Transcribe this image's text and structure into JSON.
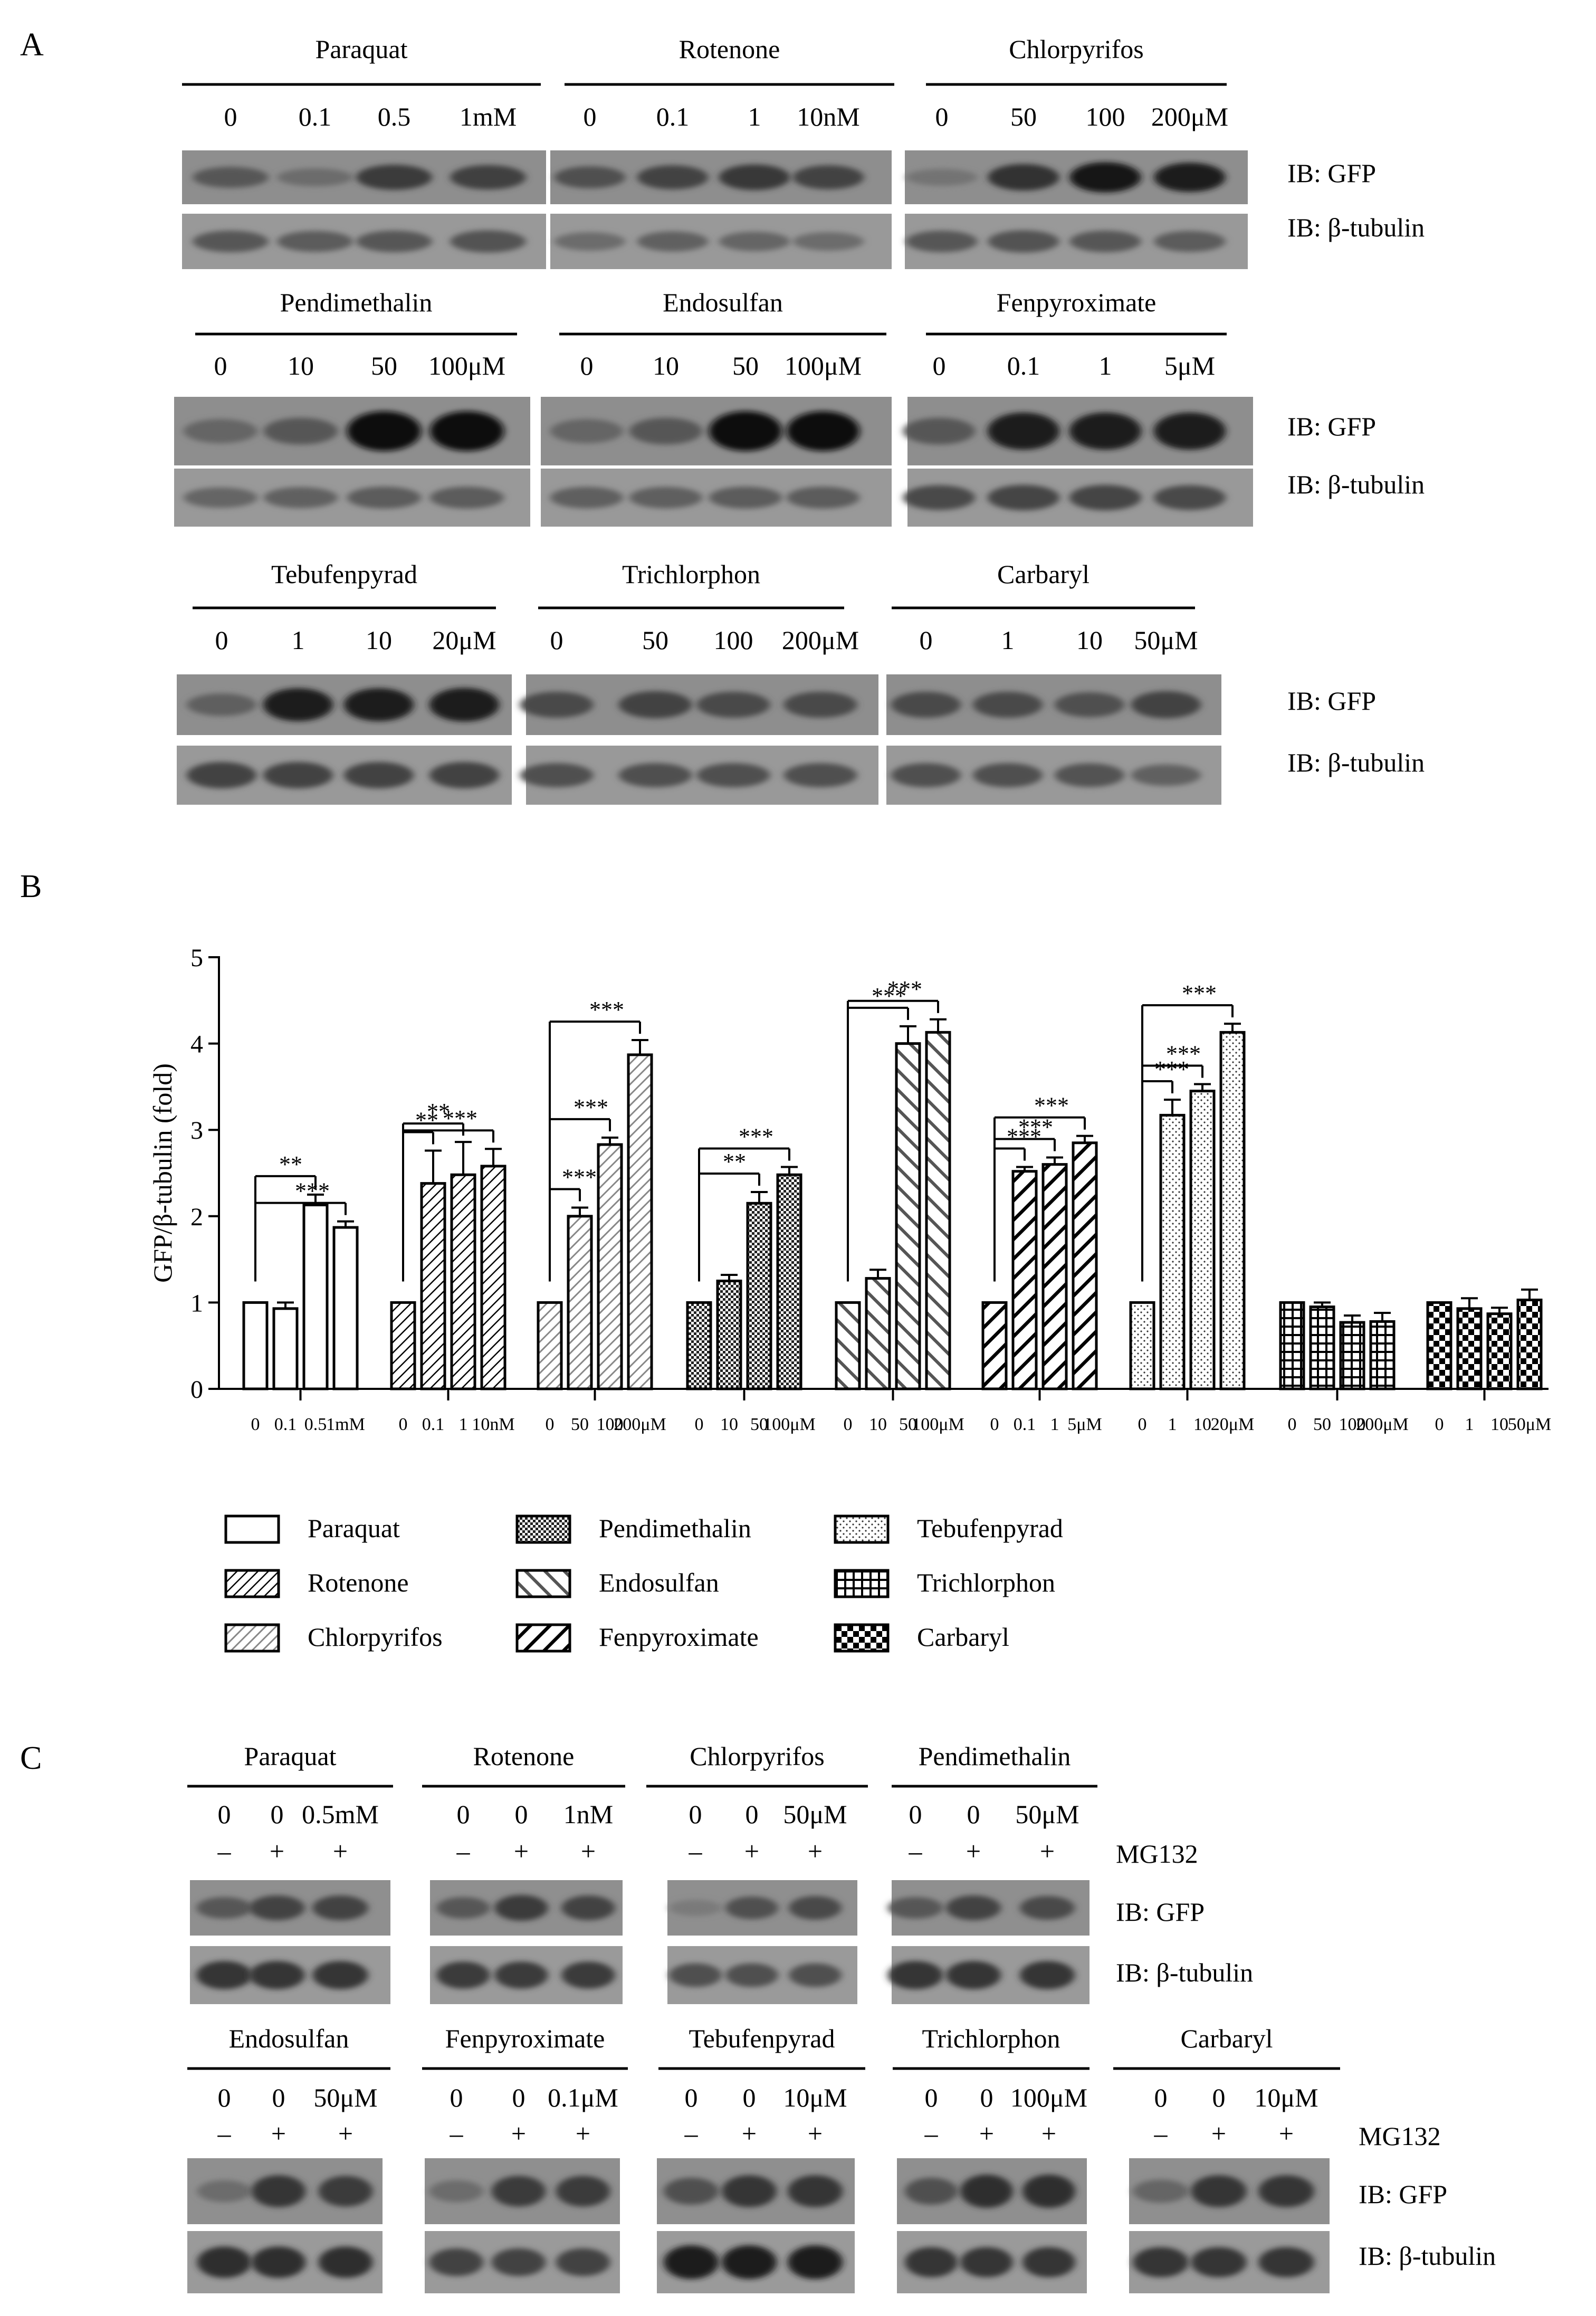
{
  "panel_labels": {
    "a": "A",
    "b": "B",
    "c": "C"
  },
  "panel_a": {
    "rows": [
      {
        "groups": [
          {
            "name": "Paraquat",
            "doses": [
              "0",
              "0.1",
              "0.5",
              "1mM"
            ],
            "gfp": [
              0.45,
              0.3,
              0.65,
              0.62
            ],
            "tub": [
              0.45,
              0.42,
              0.45,
              0.48
            ]
          },
          {
            "name": "Rotenone",
            "doses": [
              "0",
              "0.1",
              "1",
              "10nM"
            ],
            "gfp": [
              0.5,
              0.6,
              0.68,
              0.6
            ],
            "tub": [
              0.3,
              0.38,
              0.35,
              0.3
            ]
          },
          {
            "name": "Chlorpyrifos",
            "doses": [
              "0",
              "50",
              "100",
              "200μM"
            ],
            "gfp": [
              0.25,
              0.72,
              0.9,
              0.85
            ],
            "tub": [
              0.45,
              0.48,
              0.45,
              0.42
            ]
          }
        ]
      },
      {
        "groups": [
          {
            "name": "Pendimethalin",
            "doses": [
              "0",
              "10",
              "50",
              "100μM"
            ],
            "gfp": [
              0.35,
              0.45,
              0.95,
              0.95
            ],
            "tub": [
              0.35,
              0.38,
              0.42,
              0.42
            ]
          },
          {
            "name": "Endosulfan",
            "doses": [
              "0",
              "10",
              "50",
              "100μM"
            ],
            "gfp": [
              0.35,
              0.45,
              0.95,
              0.95
            ],
            "tub": [
              0.4,
              0.4,
              0.42,
              0.42
            ]
          },
          {
            "name": "Fenpyroximate",
            "doses": [
              "0",
              "0.1",
              "1",
              "5μM"
            ],
            "gfp": [
              0.45,
              0.85,
              0.85,
              0.85
            ],
            "tub": [
              0.55,
              0.58,
              0.58,
              0.55
            ]
          }
        ]
      },
      {
        "groups": [
          {
            "name": "Tebufenpyrad",
            "doses": [
              "0",
              "1",
              "10",
              "20μM"
            ],
            "gfp": [
              0.4,
              0.85,
              0.85,
              0.88
            ],
            "tub": [
              0.6,
              0.6,
              0.6,
              0.6
            ]
          },
          {
            "name": "Trichlorphon",
            "doses": [
              "0",
              "50",
              "100",
              "200μM"
            ],
            "gfp": [
              0.55,
              0.6,
              0.55,
              0.55
            ],
            "tub": [
              0.5,
              0.5,
              0.5,
              0.5
            ]
          },
          {
            "name": "Carbaryl",
            "doses": [
              "0",
              "1",
              "10",
              "50μM"
            ],
            "gfp": [
              0.55,
              0.55,
              0.5,
              0.6
            ],
            "tub": [
              0.5,
              0.5,
              0.48,
              0.38
            ]
          }
        ]
      }
    ],
    "label_gfp": "IB: GFP",
    "label_tubulin": "IB: β-tubulin"
  },
  "chart_data": {
    "type": "bar",
    "ylabel": "GFP/β-tubulin (fold)",
    "ylim": [
      0,
      5
    ],
    "yticks": [
      "0",
      "1",
      "2",
      "3",
      "4",
      "5"
    ],
    "groups": [
      {
        "name": "Paraquat",
        "pattern": "empty",
        "ticks": [
          "0",
          "0.1",
          "0.5",
          "1mM"
        ],
        "values": [
          1.0,
          0.93,
          2.13,
          1.87
        ],
        "errors": [
          0,
          0.07,
          0.12,
          0.07
        ],
        "sig": [
          {
            "to": 2,
            "label": "**"
          },
          {
            "to": 3,
            "label": "***"
          }
        ]
      },
      {
        "name": "Rotenone",
        "pattern": "diag-fine",
        "ticks": [
          "0",
          "0.1",
          "1",
          "10nM"
        ],
        "values": [
          1.0,
          2.38,
          2.48,
          2.58
        ],
        "errors": [
          0,
          0.38,
          0.38,
          0.2
        ],
        "sig": [
          {
            "to": 1,
            "label": "**"
          },
          {
            "to": 2,
            "label": "**"
          },
          {
            "to": 3,
            "label": "***"
          }
        ]
      },
      {
        "name": "Chlorpyrifos",
        "pattern": "diag-gray",
        "ticks": [
          "0",
          "50",
          "100",
          "200μM"
        ],
        "values": [
          1.0,
          2.0,
          2.83,
          3.87
        ],
        "errors": [
          0,
          0.1,
          0.08,
          0.17
        ],
        "sig": [
          {
            "to": 1,
            "label": "***"
          },
          {
            "to": 2,
            "label": "***"
          },
          {
            "to": 3,
            "label": "***"
          }
        ]
      },
      {
        "name": "Pendimethalin",
        "pattern": "checker-fine",
        "ticks": [
          "0",
          "10",
          "50",
          "100μM"
        ],
        "values": [
          1.0,
          1.25,
          2.15,
          2.48
        ],
        "errors": [
          0,
          0.07,
          0.13,
          0.09
        ],
        "sig": [
          {
            "to": 2,
            "label": "**"
          },
          {
            "to": 3,
            "label": "***"
          }
        ]
      },
      {
        "name": "Endosulfan",
        "pattern": "back-diag-wide",
        "ticks": [
          "0",
          "10",
          "50",
          "100μM"
        ],
        "values": [
          1.0,
          1.28,
          4.0,
          4.13
        ],
        "errors": [
          0,
          0.1,
          0.2,
          0.15
        ],
        "sig": [
          {
            "to": 2,
            "label": "***"
          },
          {
            "to": 3,
            "label": "***"
          }
        ]
      },
      {
        "name": "Fenpyroximate",
        "pattern": "diag-thick",
        "ticks": [
          "0",
          "0.1",
          "1",
          "5μM"
        ],
        "values": [
          1.0,
          2.52,
          2.6,
          2.85
        ],
        "errors": [
          0,
          0.05,
          0.08,
          0.08
        ],
        "sig": [
          {
            "to": 1,
            "label": "***"
          },
          {
            "to": 2,
            "label": "***"
          },
          {
            "to": 3,
            "label": "***"
          }
        ]
      },
      {
        "name": "Tebufenpyrad",
        "pattern": "dots",
        "ticks": [
          "0",
          "1",
          "10",
          "20μM"
        ],
        "values": [
          1.0,
          3.17,
          3.45,
          4.13
        ],
        "errors": [
          0,
          0.18,
          0.08,
          0.1
        ],
        "sig": [
          {
            "to": 1,
            "label": "***"
          },
          {
            "to": 2,
            "label": "***"
          },
          {
            "to": 3,
            "label": "***"
          }
        ]
      },
      {
        "name": "Trichlorphon",
        "pattern": "grid",
        "ticks": [
          "0",
          "50",
          "100",
          "200μM"
        ],
        "values": [
          1.0,
          0.95,
          0.77,
          0.78
        ],
        "errors": [
          0,
          0.05,
          0.08,
          0.1
        ],
        "sig": []
      },
      {
        "name": "Carbaryl",
        "pattern": "checker",
        "ticks": [
          "0",
          "1",
          "10",
          "50μM"
        ],
        "values": [
          1.0,
          0.93,
          0.87,
          1.03
        ],
        "errors": [
          0,
          0.12,
          0.07,
          0.12
        ],
        "sig": []
      }
    ],
    "legend": [
      "Paraquat",
      "Rotenone",
      "Chlorpyrifos",
      "Pendimethalin",
      "Endosulfan",
      "Fenpyroximate",
      "Tebufenpyrad",
      "Trichlorphon",
      "Carbaryl"
    ]
  },
  "panel_c": {
    "mg132_label": "MG132",
    "rows": [
      {
        "groups": [
          {
            "name": "Paraquat",
            "doses": [
              "0",
              "0",
              "0.5mM"
            ],
            "mg": [
              "–",
              "+",
              "+"
            ],
            "gfp": [
              0.45,
              0.6,
              0.6
            ],
            "tub": [
              0.7,
              0.7,
              0.7
            ]
          },
          {
            "name": "Rotenone",
            "doses": [
              "0",
              "0",
              "1nM"
            ],
            "mg": [
              "–",
              "+",
              "+"
            ],
            "gfp": [
              0.45,
              0.65,
              0.6
            ],
            "tub": [
              0.65,
              0.65,
              0.65
            ]
          },
          {
            "name": "Chlorpyrifos",
            "doses": [
              "0",
              "0",
              "50μM"
            ],
            "mg": [
              "–",
              "+",
              "+"
            ],
            "gfp": [
              0.2,
              0.5,
              0.55
            ],
            "tub": [
              0.5,
              0.5,
              0.5
            ]
          },
          {
            "name": "Pendimethalin",
            "doses": [
              "0",
              "0",
              "50μM"
            ],
            "mg": [
              "–",
              "+",
              "+"
            ],
            "gfp": [
              0.45,
              0.6,
              0.55
            ],
            "tub": [
              0.7,
              0.7,
              0.7
            ]
          }
        ]
      },
      {
        "groups": [
          {
            "name": "Endosulfan",
            "doses": [
              "0",
              "0",
              "50μM"
            ],
            "mg": [
              "–",
              "+",
              "+"
            ],
            "gfp": [
              0.3,
              0.7,
              0.65
            ],
            "tub": [
              0.75,
              0.75,
              0.75
            ]
          },
          {
            "name": "Fenpyroximate",
            "doses": [
              "0",
              "0",
              "0.1μM"
            ],
            "mg": [
              "–",
              "+",
              "+"
            ],
            "gfp": [
              0.3,
              0.65,
              0.65
            ],
            "tub": [
              0.6,
              0.6,
              0.6
            ]
          },
          {
            "name": "Tebufenpyrad",
            "doses": [
              "0",
              "0",
              "10μM"
            ],
            "mg": [
              "–",
              "+",
              "+"
            ],
            "gfp": [
              0.5,
              0.7,
              0.7
            ],
            "tub": [
              0.85,
              0.85,
              0.85
            ]
          },
          {
            "name": "Trichlorphon",
            "doses": [
              "0",
              "0",
              "100μM"
            ],
            "mg": [
              "–",
              "+",
              "+"
            ],
            "gfp": [
              0.5,
              0.75,
              0.75
            ],
            "tub": [
              0.7,
              0.7,
              0.7
            ]
          },
          {
            "name": "Carbaryl",
            "doses": [
              "0",
              "0",
              "10μM"
            ],
            "mg": [
              "–",
              "+",
              "+"
            ],
            "gfp": [
              0.35,
              0.7,
              0.7
            ],
            "tub": [
              0.7,
              0.7,
              0.7
            ]
          }
        ]
      }
    ]
  }
}
